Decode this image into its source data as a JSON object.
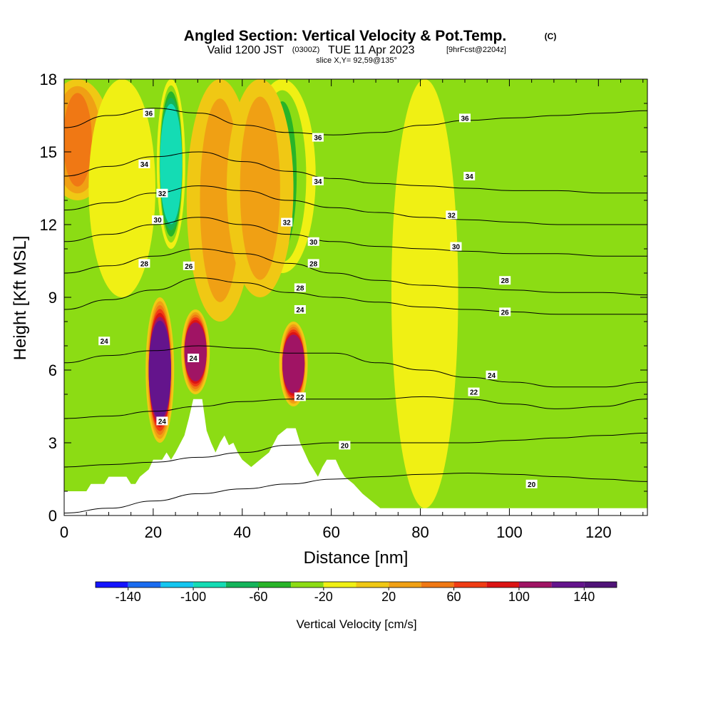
{
  "title": {
    "main": "Angled Section: Vertical Velocity & Pot.Temp.",
    "main_suffix": "(C)",
    "valid_prefix": "Valid 1200 JST",
    "valid_utc": "(0300Z)",
    "valid_date": "TUE 11 Apr 2023",
    "forecast": "[9hrFcst@2204z]",
    "slice": "slice X,Y= 92,59@135°"
  },
  "chart_data": {
    "type": "heatmap",
    "xlabel": "Distance [nm]",
    "ylabel": "Height [Kft MSL]",
    "xlim": [
      0,
      131
    ],
    "ylim": [
      0,
      18
    ],
    "x_ticks": [
      "0",
      "20",
      "40",
      "60",
      "80",
      "100",
      "120"
    ],
    "y_ticks": [
      "0",
      "3",
      "6",
      "9",
      "12",
      "15",
      "18"
    ],
    "colorbar": {
      "label": "Vertical Velocity [cm/s]",
      "tick_labels": [
        "-140",
        "-100",
        "-60",
        "-20",
        "20",
        "60",
        "100",
        "140"
      ],
      "levels": [
        -160,
        -140,
        -120,
        -100,
        -80,
        -60,
        -40,
        -20,
        0,
        20,
        40,
        60,
        80,
        100,
        120,
        140,
        160
      ],
      "colors": [
        "#1414ff",
        "#1a6cf0",
        "#14c6f0",
        "#14dcb4",
        "#14b45a",
        "#28b428",
        "#8cdc14",
        "#f0f014",
        "#f0c814",
        "#f0a014",
        "#f07814",
        "#f03c14",
        "#dc1414",
        "#a01464",
        "#64148c",
        "#501478"
      ]
    },
    "theta_contours": [
      {
        "value": 20,
        "heights": [
          0.1,
          0.3,
          0.6,
          0.9,
          1.1,
          1.3,
          1.5,
          1.6,
          1.7,
          1.75,
          1.7,
          1.6,
          1.5,
          1.4
        ],
        "labels": [
          {
            "text": "20",
            "x": 105,
            "y": 1.3
          }
        ]
      },
      {
        "value": 20,
        "heights": [
          2.0,
          2.1,
          2.2,
          2.4,
          2.6,
          2.9,
          3.0,
          3.0,
          3.0,
          3.0,
          3.1,
          3.2,
          3.3,
          3.4
        ],
        "labels": [
          {
            "text": "20",
            "x": 63,
            "y": 2.9
          }
        ]
      },
      {
        "value": 22,
        "heights": [
          4.0,
          4.1,
          4.3,
          4.5,
          4.7,
          4.8,
          4.8,
          4.8,
          4.9,
          4.8,
          4.6,
          4.4,
          4.5,
          4.8
        ],
        "labels": [
          {
            "text": "22",
            "x": 53,
            "y": 4.9
          },
          {
            "text": "22",
            "x": 92,
            "y": 5.1
          }
        ]
      },
      {
        "value": 24,
        "heights": [
          6.3,
          6.6,
          6.8,
          7.0,
          6.9,
          6.7,
          6.7,
          6.3,
          6.0,
          5.7,
          5.5,
          5.3,
          5.3,
          5.5
        ],
        "labels": [
          {
            "text": "24",
            "x": 9,
            "y": 7.2
          },
          {
            "text": "24",
            "x": 22,
            "y": 3.9
          },
          {
            "text": "24",
            "x": 29,
            "y": 6.5
          },
          {
            "text": "24",
            "x": 53,
            "y": 8.5
          },
          {
            "text": "24",
            "x": 96,
            "y": 5.8
          }
        ]
      },
      {
        "value": 26,
        "heights": [
          8.5,
          8.9,
          9.3,
          9.8,
          9.6,
          9.2,
          9.0,
          8.8,
          8.6,
          8.5,
          8.4,
          8.3,
          8.3,
          8.3
        ],
        "labels": [
          {
            "text": "26",
            "x": 28,
            "y": 10.3
          },
          {
            "text": "26",
            "x": 99,
            "y": 8.4
          }
        ]
      },
      {
        "value": 28,
        "heights": [
          10.0,
          10.3,
          10.7,
          11.0,
          10.8,
          10.4,
          10.0,
          9.7,
          9.5,
          9.4,
          9.3,
          9.2,
          9.2,
          9.1
        ],
        "labels": [
          {
            "text": "28",
            "x": 18,
            "y": 10.4
          },
          {
            "text": "28",
            "x": 53,
            "y": 9.4
          },
          {
            "text": "28",
            "x": 56,
            "y": 10.4
          },
          {
            "text": "28",
            "x": 99,
            "y": 9.7
          }
        ]
      },
      {
        "value": 30,
        "heights": [
          11.3,
          11.6,
          12.0,
          12.3,
          12.0,
          11.6,
          11.3,
          11.1,
          11.0,
          10.9,
          10.8,
          10.8,
          10.7,
          10.7
        ],
        "labels": [
          {
            "text": "30",
            "x": 21,
            "y": 12.2
          },
          {
            "text": "30",
            "x": 56,
            "y": 11.3
          },
          {
            "text": "30",
            "x": 88,
            "y": 11.1
          }
        ]
      },
      {
        "value": 32,
        "heights": [
          12.6,
          12.9,
          13.3,
          13.6,
          13.4,
          13.0,
          12.7,
          12.5,
          12.3,
          12.2,
          12.1,
          12.0,
          12.0,
          12.0
        ],
        "labels": [
          {
            "text": "32",
            "x": 22,
            "y": 13.3
          },
          {
            "text": "32",
            "x": 50,
            "y": 12.1
          },
          {
            "text": "32",
            "x": 87,
            "y": 12.4
          }
        ]
      },
      {
        "value": 34,
        "heights": [
          14.0,
          14.4,
          14.8,
          15.0,
          14.6,
          14.2,
          13.9,
          13.7,
          13.6,
          13.5,
          13.4,
          13.4,
          13.3,
          13.3
        ],
        "labels": [
          {
            "text": "34",
            "x": 18,
            "y": 14.5
          },
          {
            "text": "34",
            "x": 57,
            "y": 13.8
          },
          {
            "text": "34",
            "x": 91,
            "y": 14.0
          }
        ]
      },
      {
        "value": 36,
        "heights": [
          16.0,
          16.5,
          16.8,
          16.6,
          16.1,
          15.8,
          15.7,
          15.8,
          16.1,
          16.3,
          16.4,
          16.5,
          16.6,
          16.7
        ],
        "labels": [
          {
            "text": "36",
            "x": 19,
            "y": 16.6
          },
          {
            "text": "36",
            "x": 57,
            "y": 15.6
          },
          {
            "text": "36",
            "x": 90,
            "y": 16.4
          }
        ]
      }
    ],
    "terrain_kft": [
      [
        0,
        1.0
      ],
      [
        5,
        1.0
      ],
      [
        6,
        1.3
      ],
      [
        9,
        1.3
      ],
      [
        10,
        1.6
      ],
      [
        14,
        1.6
      ],
      [
        15,
        1.3
      ],
      [
        16,
        1.3
      ],
      [
        17,
        1.6
      ],
      [
        19,
        1.9
      ],
      [
        20,
        2.3
      ],
      [
        22,
        2.3
      ],
      [
        23,
        2.6
      ],
      [
        24,
        2.3
      ],
      [
        25,
        2.6
      ],
      [
        27,
        3.3
      ],
      [
        28,
        4.0
      ],
      [
        29,
        4.8
      ],
      [
        31,
        4.8
      ],
      [
        32,
        3.5
      ],
      [
        33,
        3.0
      ],
      [
        34,
        2.6
      ],
      [
        35,
        3.0
      ],
      [
        36,
        3.3
      ],
      [
        37,
        2.9
      ],
      [
        38,
        3.0
      ],
      [
        39,
        2.6
      ],
      [
        40,
        2.3
      ],
      [
        42,
        2.0
      ],
      [
        44,
        2.3
      ],
      [
        46,
        2.6
      ],
      [
        48,
        3.3
      ],
      [
        50,
        3.6
      ],
      [
        52,
        3.6
      ],
      [
        53,
        3.0
      ],
      [
        54,
        2.6
      ],
      [
        55,
        2.2
      ],
      [
        56,
        1.9
      ],
      [
        57,
        1.6
      ],
      [
        58,
        2.0
      ],
      [
        59,
        2.3
      ],
      [
        61,
        2.3
      ],
      [
        62,
        1.9
      ],
      [
        63,
        1.6
      ],
      [
        65,
        1.3
      ],
      [
        67,
        0.9
      ],
      [
        69,
        0.6
      ],
      [
        71,
        0.3
      ],
      [
        74,
        0.3
      ],
      [
        131,
        0.3
      ]
    ],
    "velocity_field": [
      {
        "band": "strong updraft",
        "x_center": 21.5,
        "y_range": [
          3.0,
          9.0
        ],
        "peak_cm_s": 140
      },
      {
        "band": "strong updraft",
        "x_center": 29.5,
        "y_range": [
          5.0,
          8.5
        ],
        "peak_cm_s": 130
      },
      {
        "band": "strong updraft",
        "x_center": 51.5,
        "y_range": [
          4.5,
          8.0
        ],
        "peak_cm_s": 130
      },
      {
        "band": "downdraft",
        "x_center": 24,
        "y_range": [
          11.0,
          18.0
        ],
        "peak_cm_s": -100
      },
      {
        "band": "downdraft",
        "x_center": 49,
        "y_range": [
          10.0,
          18.0
        ],
        "peak_cm_s": -60
      },
      {
        "band": "weak updraft",
        "x_center": 3,
        "y_range": [
          13.0,
          18.0
        ],
        "peak_cm_s": 70
      },
      {
        "band": "weak updraft",
        "x_center": 35,
        "y_range": [
          8.0,
          18.0
        ],
        "peak_cm_s": 50
      },
      {
        "band": "weak updraft",
        "x_center": 44,
        "y_range": [
          9.0,
          18.0
        ],
        "peak_cm_s": 40
      },
      {
        "band": "weak downdraft",
        "x_center": 13,
        "y_range": [
          9.0,
          18.0
        ],
        "peak_cm_s": -30
      },
      {
        "band": "weak downdraft",
        "x_center": 81,
        "y_range": [
          0.3,
          18.0
        ],
        "peak_cm_s": -10
      }
    ]
  }
}
